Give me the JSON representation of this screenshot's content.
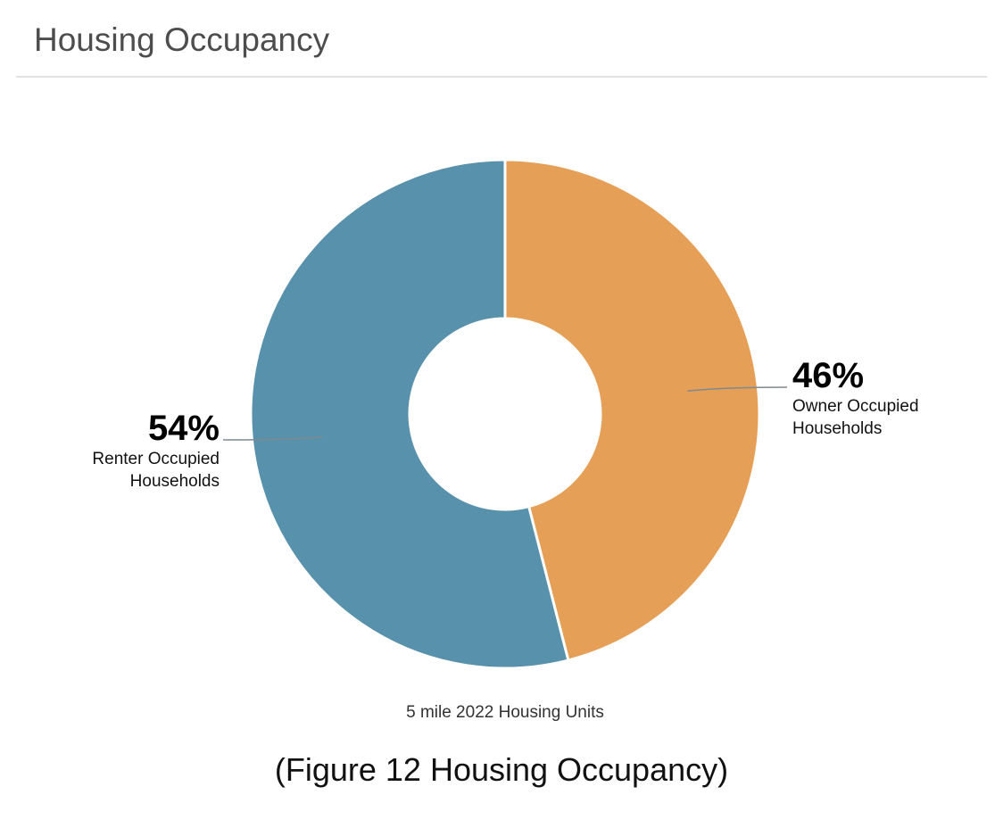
{
  "header": {
    "title": "Housing Occupancy"
  },
  "chart_data": {
    "type": "pie",
    "subtype": "donut",
    "title": "Housing Occupancy",
    "subtitle": "5 mile 2022 Housing Units",
    "slices": [
      {
        "label": "Owner Occupied Households",
        "label_lines": [
          "Owner Occupied",
          "Households"
        ],
        "value": 46,
        "display": "46%",
        "color": "#e69f56",
        "label_side": "right"
      },
      {
        "label": "Renter Occupied Households",
        "label_lines": [
          "Renter Occupied",
          "Households"
        ],
        "value": 54,
        "display": "54%",
        "color": "#5891ab",
        "label_side": "left"
      }
    ]
  },
  "caption": "(Figure 12 Housing Occupancy)"
}
